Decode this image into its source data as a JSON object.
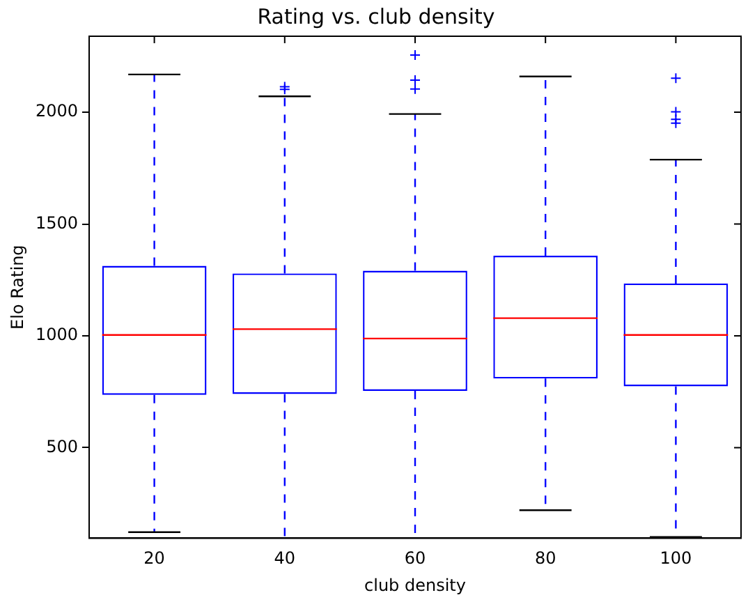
{
  "chart_data": {
    "type": "box",
    "title": "Rating vs. club density",
    "xlabel": "club density",
    "ylabel": "Elo Rating",
    "categories": [
      "20",
      "40",
      "60",
      "80",
      "100"
    ],
    "ylim": [
      95,
      2340
    ],
    "yticks": [
      500,
      1000,
      1500,
      2000
    ],
    "grid": false,
    "legend": false,
    "marker": "cross",
    "boxes": [
      {
        "low": 122,
        "q1": 736,
        "median": 1004,
        "q3": 1313,
        "high": 2169
      },
      {
        "low": 95,
        "q1": 740,
        "median": 1030,
        "q3": 1279,
        "high": 2071,
        "outliers": [
          2102,
          2114
        ]
      },
      {
        "low": 95,
        "q1": 754,
        "median": 988,
        "q3": 1291,
        "high": 1992,
        "outliers": [
          2104,
          2144,
          2256
        ]
      },
      {
        "low": 220,
        "q1": 809,
        "median": 1079,
        "q3": 1358,
        "high": 2160
      },
      {
        "low": 100,
        "q1": 774,
        "median": 1004,
        "q3": 1234,
        "high": 1788,
        "outliers": [
          1951,
          1968,
          2002,
          2152
        ]
      }
    ]
  }
}
